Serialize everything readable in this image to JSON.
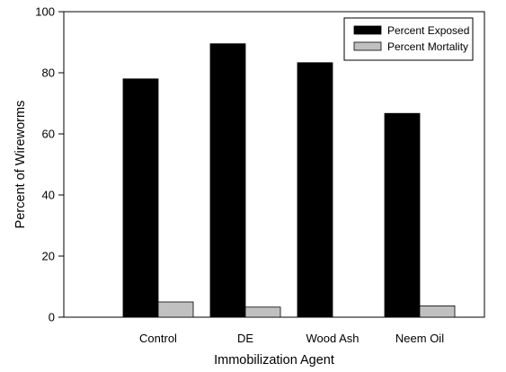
{
  "chart_data": {
    "type": "bar",
    "categories": [
      "Control",
      "DE",
      "Wood Ash",
      "Neem Oil"
    ],
    "series": [
      {
        "name": "Percent Exposed",
        "values": [
          78,
          89.5,
          83.3,
          66.7
        ],
        "color": "#000000"
      },
      {
        "name": "Percent Mortality",
        "values": [
          5,
          3.3,
          0,
          3.7
        ],
        "color": "#c0c0c0"
      }
    ],
    "xlabel": "Immobilization Agent",
    "ylabel": "Percent of Wireworms",
    "ylim": [
      0,
      100
    ],
    "yticks": [
      0,
      20,
      40,
      60,
      80,
      100
    ],
    "grid": false,
    "legend_position": "top-right"
  }
}
